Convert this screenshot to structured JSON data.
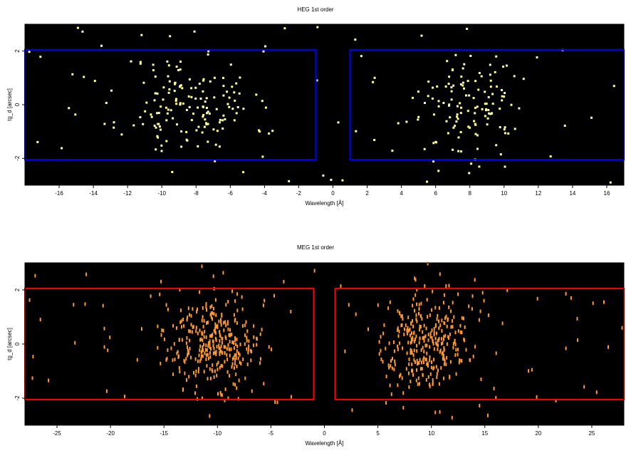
{
  "chart_data": [
    {
      "type": "scatter",
      "title": "HEG 1st order",
      "xlabel": "Wavelength [Å]",
      "ylabel": "tg_d [arcsec]",
      "xlim": [
        -18,
        17
      ],
      "ylim": [
        -3,
        3
      ],
      "xticks": [
        "-16",
        "-14",
        "-12",
        "-10",
        "-8",
        "-6",
        "-4",
        "-2",
        "0",
        "2",
        "4",
        "6",
        "8",
        "10",
        "12",
        "14",
        "16"
      ],
      "yticks": [
        "-2",
        "0",
        "2"
      ],
      "grid": false,
      "background": "#000000",
      "point_color": "#ffff99",
      "region_color": "#0000ff",
      "regions": [
        {
          "x": [
            -18,
            -1
          ],
          "y": [
            -2.05,
            2.05
          ]
        },
        {
          "x": [
            1,
            17
          ],
          "y": [
            -2.05,
            2.05
          ]
        }
      ],
      "point_clusters": [
        {
          "x_center": -8.5,
          "x_spread": 3.2,
          "y_spread": 1.0,
          "count": 150
        },
        {
          "x_center": 8.0,
          "x_spread": 2.8,
          "y_spread": 1.0,
          "count": 120
        },
        {
          "x_center": 0,
          "x_spread": 10.0,
          "y_spread": 1.8,
          "count": 60
        }
      ]
    },
    {
      "type": "scatter",
      "title": "MEG 1st order",
      "xlabel": "Wavelength [Å]",
      "ylabel": "tg_d [arcsec]",
      "xlim": [
        -28,
        28
      ],
      "ylim": [
        -3,
        3
      ],
      "xticks": [
        "-25",
        "-20",
        "-15",
        "-10",
        "-5",
        "0",
        "5",
        "10",
        "15",
        "20",
        "25"
      ],
      "yticks": [
        "-2",
        "0",
        "2"
      ],
      "grid": false,
      "background": "#000000",
      "point_color": "#ff9933",
      "region_color": "#ff0000",
      "regions": [
        {
          "x": [
            -28,
            -1
          ],
          "y": [
            -2.05,
            2.05
          ]
        },
        {
          "x": [
            1,
            28
          ],
          "y": [
            -2.05,
            2.05
          ]
        }
      ],
      "point_clusters": [
        {
          "x_center": -10.5,
          "x_spread": 4.0,
          "y_spread": 0.9,
          "count": 320
        },
        {
          "x_center": 9.5,
          "x_spread": 3.8,
          "y_spread": 0.9,
          "count": 300
        },
        {
          "x_center": 0,
          "x_spread": 16.0,
          "y_spread": 1.8,
          "count": 80
        }
      ]
    }
  ]
}
